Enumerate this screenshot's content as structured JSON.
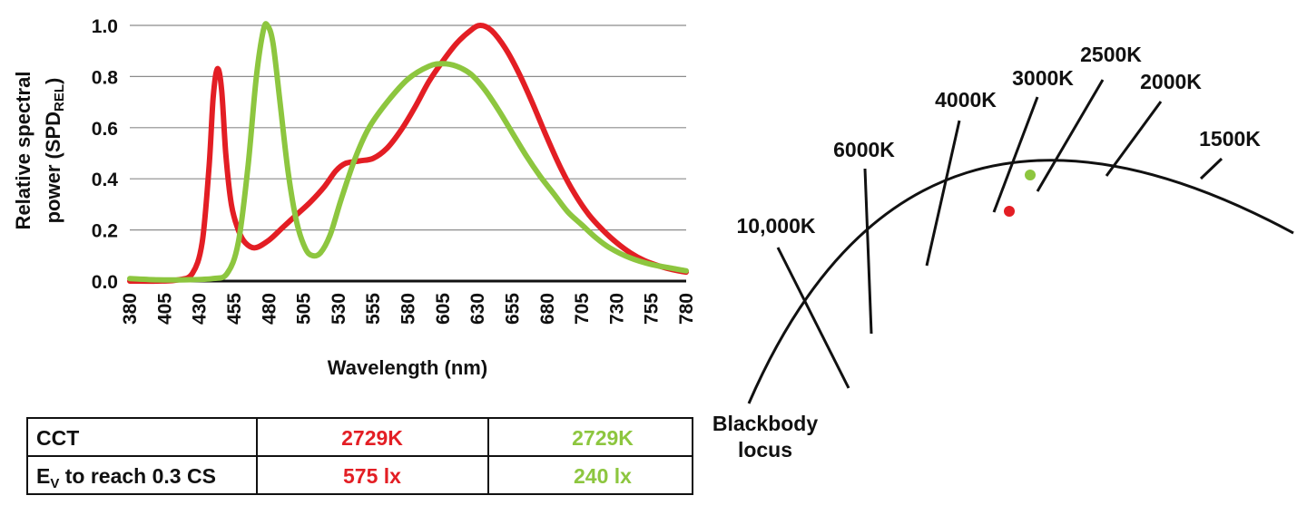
{
  "spd_chart": {
    "chart_data": {
      "type": "line",
      "x_label": "Wavelength (nm)",
      "y_label": {
        "main": "Relative spectral",
        "line2": "power (SPD",
        "sub": "REL",
        "close": ")"
      },
      "x_ticks": [
        "380",
        "405",
        "430",
        "455",
        "480",
        "505",
        "530",
        "555",
        "580",
        "605",
        "630",
        "655",
        "680",
        "705",
        "730",
        "755",
        "780"
      ],
      "y_ticks": [
        "0.0",
        "0.2",
        "0.4",
        "0.6",
        "0.8",
        "1.0"
      ],
      "xlim": [
        380,
        780
      ],
      "ylim": [
        0,
        1
      ],
      "grid": true,
      "series": [
        {
          "color": "#e31e24",
          "points": [
            [
              380,
              0
            ],
            [
              400,
              0
            ],
            [
              415,
              0.005
            ],
            [
              425,
              0.03
            ],
            [
              432,
              0.15
            ],
            [
              437,
              0.45
            ],
            [
              440,
              0.72
            ],
            [
              443,
              0.83
            ],
            [
              446,
              0.75
            ],
            [
              449,
              0.5
            ],
            [
              453,
              0.3
            ],
            [
              458,
              0.2
            ],
            [
              463,
              0.15
            ],
            [
              470,
              0.13
            ],
            [
              480,
              0.16
            ],
            [
              490,
              0.21
            ],
            [
              500,
              0.26
            ],
            [
              510,
              0.31
            ],
            [
              520,
              0.37
            ],
            [
              528,
              0.43
            ],
            [
              535,
              0.46
            ],
            [
              545,
              0.47
            ],
            [
              555,
              0.48
            ],
            [
              565,
              0.52
            ],
            [
              575,
              0.59
            ],
            [
              585,
              0.68
            ],
            [
              595,
              0.78
            ],
            [
              605,
              0.86
            ],
            [
              615,
              0.93
            ],
            [
              625,
              0.98
            ],
            [
              632,
              1.0
            ],
            [
              640,
              0.98
            ],
            [
              650,
              0.91
            ],
            [
              660,
              0.81
            ],
            [
              670,
              0.69
            ],
            [
              680,
              0.56
            ],
            [
              690,
              0.44
            ],
            [
              700,
              0.34
            ],
            [
              710,
              0.26
            ],
            [
              720,
              0.2
            ],
            [
              730,
              0.15
            ],
            [
              740,
              0.11
            ],
            [
              750,
              0.08
            ],
            [
              760,
              0.06
            ],
            [
              770,
              0.045
            ],
            [
              780,
              0.035
            ]
          ]
        },
        {
          "color": "#8dc63f",
          "points": [
            [
              380,
              0.01
            ],
            [
              400,
              0.005
            ],
            [
              420,
              0.005
            ],
            [
              440,
              0.01
            ],
            [
              450,
              0.03
            ],
            [
              458,
              0.15
            ],
            [
              465,
              0.45
            ],
            [
              471,
              0.8
            ],
            [
              476,
              0.98
            ],
            [
              479,
              1.0
            ],
            [
              483,
              0.93
            ],
            [
              488,
              0.7
            ],
            [
              494,
              0.42
            ],
            [
              500,
              0.23
            ],
            [
              506,
              0.13
            ],
            [
              511,
              0.1
            ],
            [
              517,
              0.11
            ],
            [
              524,
              0.18
            ],
            [
              532,
              0.32
            ],
            [
              542,
              0.48
            ],
            [
              552,
              0.6
            ],
            [
              565,
              0.7
            ],
            [
              580,
              0.79
            ],
            [
              595,
              0.84
            ],
            [
              605,
              0.85
            ],
            [
              615,
              0.84
            ],
            [
              625,
              0.81
            ],
            [
              635,
              0.75
            ],
            [
              645,
              0.67
            ],
            [
              655,
              0.58
            ],
            [
              665,
              0.49
            ],
            [
              675,
              0.41
            ],
            [
              685,
              0.34
            ],
            [
              695,
              0.27
            ],
            [
              705,
              0.22
            ],
            [
              715,
              0.17
            ],
            [
              725,
              0.13
            ],
            [
              740,
              0.09
            ],
            [
              755,
              0.065
            ],
            [
              770,
              0.05
            ],
            [
              780,
              0.04
            ]
          ]
        }
      ]
    }
  },
  "cct_diagram": {
    "cct_labels": [
      "10,000K",
      "6000K",
      "4000K",
      "3000K",
      "2500K",
      "2000K",
      "1500K"
    ],
    "locus_label_line1": "Blackbody",
    "locus_label_line2": "locus",
    "point_colors": {
      "red": "#e31e24",
      "green": "#8dc63f"
    }
  },
  "table": {
    "row1": {
      "label": "CCT",
      "red": "2729K",
      "green": "2729K"
    },
    "row2": {
      "label_pre": "E",
      "label_sub": "V",
      "label_post": " to reach 0.3 CS",
      "red": "575 lx",
      "green": "240 lx"
    }
  },
  "colors": {
    "red": "#e31e24",
    "green": "#8dc63f",
    "grid": "#8c8c8c"
  }
}
